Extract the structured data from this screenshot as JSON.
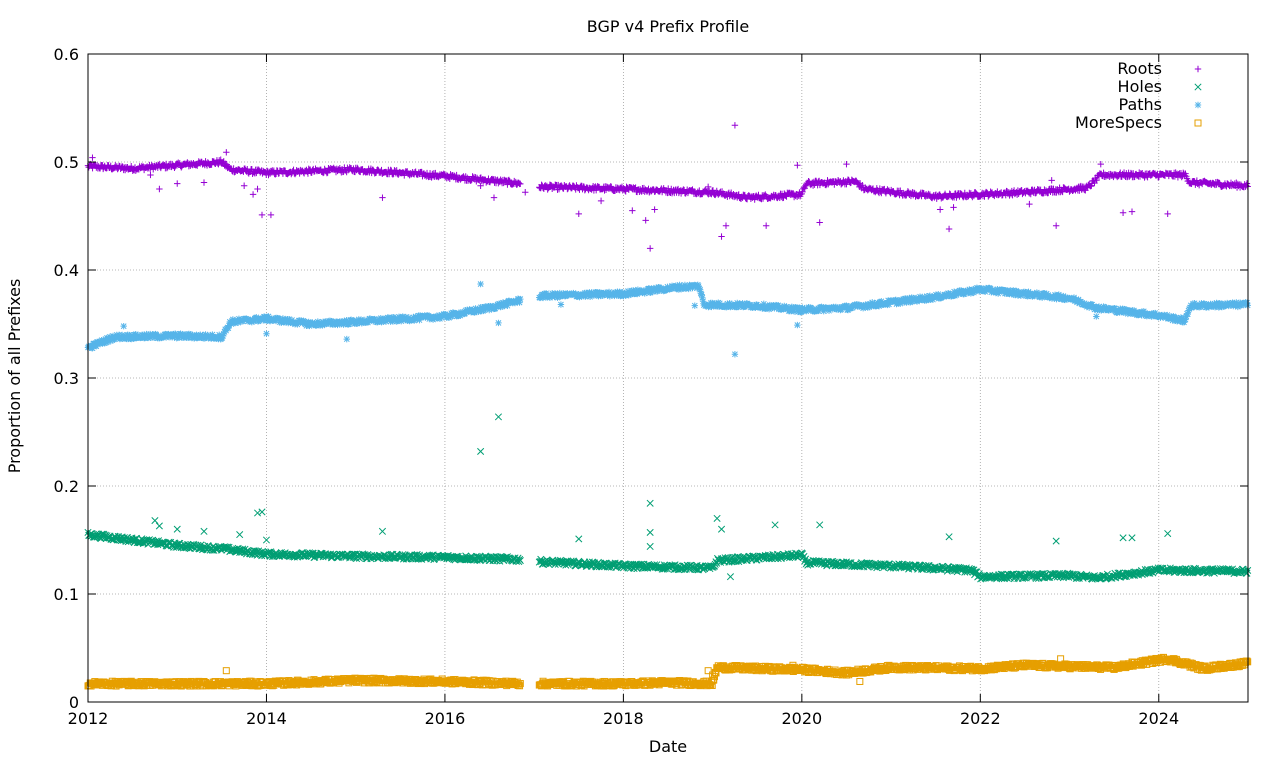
{
  "chart_data": {
    "type": "scatter",
    "title": "BGP v4 Prefix Profile",
    "xlabel": "Date",
    "ylabel": "Proportion of all Prefixes",
    "xlim": [
      2012,
      2025
    ],
    "ylim": [
      0,
      0.6
    ],
    "x_ticks": [
      "2012",
      "2014",
      "2016",
      "2018",
      "2020",
      "2022",
      "2024"
    ],
    "y_ticks": [
      "0",
      "0.1",
      "0.2",
      "0.3",
      "0.4",
      "0.5",
      "0.6"
    ],
    "grid": true,
    "legend_position": "top-right",
    "gap": [
      2016.85,
      2017.05
    ],
    "series": [
      {
        "name": "Roots",
        "marker": "+",
        "color": "#9400d3",
        "trend": [
          [
            2012.0,
            0.496
          ],
          [
            2012.5,
            0.494
          ],
          [
            2013.0,
            0.497
          ],
          [
            2013.5,
            0.5
          ],
          [
            2013.6,
            0.493
          ],
          [
            2014.0,
            0.49
          ],
          [
            2015.0,
            0.493
          ],
          [
            2016.0,
            0.487
          ],
          [
            2016.85,
            0.48
          ],
          [
            2017.05,
            0.477
          ],
          [
            2018.0,
            0.475
          ],
          [
            2019.0,
            0.472
          ],
          [
            2019.4,
            0.467
          ],
          [
            2020.0,
            0.47
          ],
          [
            2020.05,
            0.48
          ],
          [
            2020.6,
            0.482
          ],
          [
            2020.7,
            0.475
          ],
          [
            2021.5,
            0.468
          ],
          [
            2022.5,
            0.472
          ],
          [
            2023.2,
            0.476
          ],
          [
            2023.35,
            0.488
          ],
          [
            2024.3,
            0.488
          ],
          [
            2024.35,
            0.481
          ],
          [
            2025.0,
            0.478
          ]
        ],
        "outliers": [
          [
            2012.05,
            0.504
          ],
          [
            2012.7,
            0.488
          ],
          [
            2012.8,
            0.475
          ],
          [
            2013.0,
            0.48
          ],
          [
            2013.3,
            0.481
          ],
          [
            2013.55,
            0.509
          ],
          [
            2013.75,
            0.478
          ],
          [
            2013.85,
            0.47
          ],
          [
            2013.9,
            0.475
          ],
          [
            2013.95,
            0.451
          ],
          [
            2014.05,
            0.451
          ],
          [
            2015.3,
            0.467
          ],
          [
            2016.4,
            0.478
          ],
          [
            2016.55,
            0.467
          ],
          [
            2016.9,
            0.472
          ],
          [
            2017.5,
            0.452
          ],
          [
            2017.75,
            0.464
          ],
          [
            2018.1,
            0.455
          ],
          [
            2018.25,
            0.446
          ],
          [
            2018.3,
            0.42
          ],
          [
            2018.35,
            0.456
          ],
          [
            2018.95,
            0.477
          ],
          [
            2019.1,
            0.431
          ],
          [
            2019.15,
            0.441
          ],
          [
            2019.25,
            0.534
          ],
          [
            2019.6,
            0.441
          ],
          [
            2019.95,
            0.497
          ],
          [
            2020.2,
            0.444
          ],
          [
            2020.5,
            0.498
          ],
          [
            2021.55,
            0.456
          ],
          [
            2021.65,
            0.438
          ],
          [
            2021.7,
            0.458
          ],
          [
            2022.55,
            0.461
          ],
          [
            2022.8,
            0.483
          ],
          [
            2022.85,
            0.441
          ],
          [
            2023.35,
            0.498
          ],
          [
            2023.6,
            0.453
          ],
          [
            2023.7,
            0.454
          ],
          [
            2024.1,
            0.452
          ]
        ]
      },
      {
        "name": "Holes",
        "marker": "x",
        "color": "#009e73",
        "trend": [
          [
            2012.0,
            0.155
          ],
          [
            2012.5,
            0.15
          ],
          [
            2013.0,
            0.145
          ],
          [
            2013.5,
            0.142
          ],
          [
            2014.0,
            0.137
          ],
          [
            2015.0,
            0.135
          ],
          [
            2016.0,
            0.134
          ],
          [
            2016.85,
            0.132
          ],
          [
            2017.05,
            0.13
          ],
          [
            2018.0,
            0.126
          ],
          [
            2018.5,
            0.125
          ],
          [
            2019.0,
            0.124
          ],
          [
            2019.05,
            0.131
          ],
          [
            2020.0,
            0.136
          ],
          [
            2020.05,
            0.129
          ],
          [
            2021.0,
            0.126
          ],
          [
            2021.5,
            0.124
          ],
          [
            2021.9,
            0.122
          ],
          [
            2022.0,
            0.116
          ],
          [
            2023.0,
            0.117
          ],
          [
            2023.3,
            0.115
          ],
          [
            2024.0,
            0.122
          ],
          [
            2025.0,
            0.121
          ]
        ],
        "outliers": [
          [
            2012.75,
            0.168
          ],
          [
            2012.8,
            0.163
          ],
          [
            2013.0,
            0.16
          ],
          [
            2013.3,
            0.158
          ],
          [
            2013.7,
            0.155
          ],
          [
            2013.9,
            0.175
          ],
          [
            2013.95,
            0.176
          ],
          [
            2014.0,
            0.15
          ],
          [
            2015.3,
            0.158
          ],
          [
            2016.4,
            0.232
          ],
          [
            2016.6,
            0.264
          ],
          [
            2017.5,
            0.151
          ],
          [
            2018.3,
            0.184
          ],
          [
            2018.3,
            0.157
          ],
          [
            2018.3,
            0.144
          ],
          [
            2019.05,
            0.17
          ],
          [
            2019.1,
            0.16
          ],
          [
            2019.2,
            0.116
          ],
          [
            2019.7,
            0.164
          ],
          [
            2020.2,
            0.164
          ],
          [
            2021.65,
            0.153
          ],
          [
            2022.85,
            0.149
          ],
          [
            2023.6,
            0.152
          ],
          [
            2023.7,
            0.152
          ],
          [
            2024.1,
            0.156
          ]
        ]
      },
      {
        "name": "Paths",
        "marker": "*",
        "color": "#56b4e9",
        "trend": [
          [
            2012.0,
            0.328
          ],
          [
            2012.3,
            0.338
          ],
          [
            2013.0,
            0.339
          ],
          [
            2013.5,
            0.338
          ],
          [
            2013.6,
            0.352
          ],
          [
            2014.0,
            0.355
          ],
          [
            2014.5,
            0.35
          ],
          [
            2015.0,
            0.352
          ],
          [
            2016.0,
            0.357
          ],
          [
            2016.5,
            0.365
          ],
          [
            2016.85,
            0.372
          ],
          [
            2017.05,
            0.376
          ],
          [
            2018.0,
            0.378
          ],
          [
            2018.6,
            0.384
          ],
          [
            2018.85,
            0.385
          ],
          [
            2018.9,
            0.368
          ],
          [
            2019.5,
            0.367
          ],
          [
            2020.0,
            0.363
          ],
          [
            2020.5,
            0.365
          ],
          [
            2021.0,
            0.37
          ],
          [
            2021.5,
            0.375
          ],
          [
            2022.0,
            0.382
          ],
          [
            2022.5,
            0.378
          ],
          [
            2023.0,
            0.374
          ],
          [
            2023.3,
            0.365
          ],
          [
            2024.0,
            0.358
          ],
          [
            2024.3,
            0.353
          ],
          [
            2024.35,
            0.367
          ],
          [
            2025.0,
            0.368
          ]
        ],
        "outliers": [
          [
            2012.4,
            0.348
          ],
          [
            2014.0,
            0.341
          ],
          [
            2014.9,
            0.336
          ],
          [
            2016.4,
            0.387
          ],
          [
            2016.6,
            0.351
          ],
          [
            2017.3,
            0.368
          ],
          [
            2018.8,
            0.367
          ],
          [
            2019.25,
            0.322
          ],
          [
            2019.95,
            0.349
          ],
          [
            2023.3,
            0.357
          ]
        ]
      },
      {
        "name": "MoreSpecs",
        "marker": "square",
        "color": "#e69f00",
        "trend": [
          [
            2012.0,
            0.017
          ],
          [
            2013.0,
            0.017
          ],
          [
            2014.0,
            0.017
          ],
          [
            2015.0,
            0.02
          ],
          [
            2016.0,
            0.019
          ],
          [
            2016.85,
            0.017
          ],
          [
            2017.05,
            0.017
          ],
          [
            2018.0,
            0.017
          ],
          [
            2018.5,
            0.018
          ],
          [
            2019.0,
            0.017
          ],
          [
            2019.05,
            0.032
          ],
          [
            2020.0,
            0.03
          ],
          [
            2020.5,
            0.027
          ],
          [
            2021.0,
            0.032
          ],
          [
            2022.0,
            0.031
          ],
          [
            2022.5,
            0.034
          ],
          [
            2023.0,
            0.033
          ],
          [
            2023.5,
            0.032
          ],
          [
            2024.1,
            0.04
          ],
          [
            2024.5,
            0.031
          ],
          [
            2025.0,
            0.036
          ]
        ],
        "outliers": [
          [
            2013.55,
            0.029
          ],
          [
            2018.95,
            0.029
          ],
          [
            2019.0,
            0.025
          ],
          [
            2019.9,
            0.034
          ],
          [
            2020.65,
            0.019
          ],
          [
            2022.9,
            0.04
          ],
          [
            2023.7,
            0.037
          ]
        ]
      }
    ]
  }
}
